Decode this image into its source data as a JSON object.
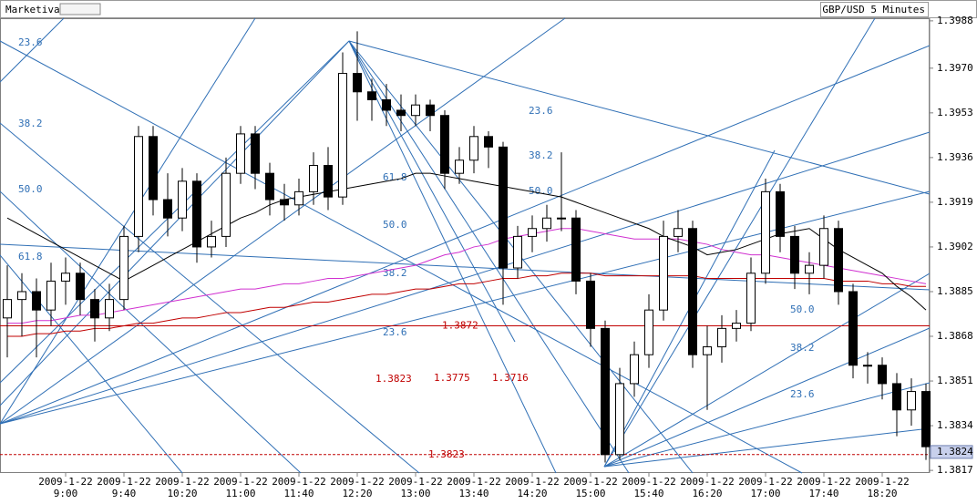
{
  "app": "Marketiva",
  "chart_data": {
    "type": "candlestick",
    "title": "GBP/USD 5 Minutes",
    "x": [
      null,
      null,
      null,
      null,
      "2009-1-22 9:00",
      null,
      null,
      null,
      "2009-1-22 9:40",
      null,
      null,
      null,
      "2009-1-22 10:20",
      null,
      null,
      null,
      "2009-1-22 11:00",
      null,
      null,
      null,
      "2009-1-22 11:40",
      null,
      null,
      null,
      "2009-1-22 12:20",
      null,
      null,
      null,
      "2009-1-22 13:00",
      null,
      null,
      null,
      "2009-1-22 13:40",
      null,
      null,
      null,
      "2009-1-22 14:20",
      null,
      null,
      null,
      "2009-1-22 15:00",
      null,
      null,
      null,
      "2009-1-22 15:40",
      null,
      null,
      null,
      "2009-1-22 16:20",
      null,
      null,
      null,
      "2009-1-22 17:00",
      null,
      null,
      null,
      "2009-1-22 17:40",
      null,
      null,
      null,
      "2009-1-22 18:20",
      null,
      null,
      null
    ],
    "open": [
      1.3875,
      1.3882,
      1.3885,
      1.3878,
      1.3889,
      1.3892,
      1.3882,
      1.3875,
      1.3882,
      1.3906,
      1.3944,
      1.392,
      1.3913,
      1.3927,
      1.3902,
      1.3906,
      1.393,
      1.3945,
      1.393,
      1.392,
      1.3918,
      1.3923,
      1.3933,
      1.3921,
      1.3968,
      1.3961,
      1.3958,
      1.3954,
      1.3952,
      1.3956,
      1.3952,
      1.393,
      1.3935,
      1.3944,
      1.394,
      1.3894,
      1.3906,
      1.3909,
      1.3913,
      1.3913,
      1.3889,
      1.3871,
      1.3823,
      1.385,
      1.3861,
      1.3878,
      1.3906,
      1.3909,
      1.3861,
      1.3864,
      1.3871,
      1.3873,
      1.3892,
      1.3923,
      1.3906,
      1.3892,
      1.3895,
      1.3909,
      1.3885,
      1.3857,
      1.3857,
      1.385,
      1.384,
      1.3847
    ],
    "high": [
      1.3895,
      1.3892,
      1.389,
      1.3896,
      1.3898,
      1.3896,
      1.3886,
      1.3888,
      1.391,
      1.3948,
      1.3948,
      1.393,
      1.3932,
      1.393,
      1.3912,
      1.3936,
      1.3948,
      1.3948,
      1.3934,
      1.3926,
      1.3928,
      1.3938,
      1.394,
      1.3976,
      1.3984,
      1.3966,
      1.3964,
      1.396,
      1.396,
      1.3958,
      1.3954,
      1.394,
      1.3948,
      1.3946,
      1.3942,
      1.391,
      1.3914,
      1.3918,
      1.3938,
      1.3916,
      1.3892,
      1.3874,
      1.3856,
      1.3866,
      1.3884,
      1.3912,
      1.3916,
      1.3912,
      1.3872,
      1.3876,
      1.3878,
      1.3898,
      1.3928,
      1.3926,
      1.391,
      1.39,
      1.3914,
      1.3912,
      1.3888,
      1.3862,
      1.386,
      1.3854,
      1.3852,
      1.385
    ],
    "low": [
      1.386,
      1.3868,
      1.386,
      1.3872,
      1.388,
      1.3876,
      1.3866,
      1.387,
      1.3878,
      1.39,
      1.3914,
      1.3906,
      1.3908,
      1.3896,
      1.3898,
      1.3902,
      1.3926,
      1.3924,
      1.3914,
      1.3912,
      1.3914,
      1.3918,
      1.3916,
      1.3918,
      1.395,
      1.395,
      1.3948,
      1.3946,
      1.3948,
      1.3946,
      1.3924,
      1.3926,
      1.393,
      1.3932,
      1.388,
      1.389,
      1.39,
      1.3904,
      1.3908,
      1.3884,
      1.3864,
      1.382,
      1.3821,
      1.3845,
      1.3856,
      1.3874,
      1.39,
      1.3856,
      1.384,
      1.3858,
      1.3866,
      1.387,
      1.3888,
      1.39,
      1.3886,
      1.3884,
      1.389,
      1.388,
      1.3852,
      1.385,
      1.3844,
      1.383,
      1.3834,
      1.3821
    ],
    "close": [
      1.3882,
      1.3885,
      1.3878,
      1.3889,
      1.3892,
      1.3882,
      1.3875,
      1.3882,
      1.3906,
      1.3944,
      1.392,
      1.3913,
      1.3927,
      1.3902,
      1.3906,
      1.393,
      1.3945,
      1.393,
      1.392,
      1.3918,
      1.3923,
      1.3933,
      1.3921,
      1.3968,
      1.3961,
      1.3958,
      1.3954,
      1.3952,
      1.3956,
      1.3952,
      1.393,
      1.3935,
      1.3944,
      1.394,
      1.3894,
      1.3906,
      1.3909,
      1.3913,
      1.3913,
      1.3889,
      1.3871,
      1.3823,
      1.385,
      1.3861,
      1.3878,
      1.3906,
      1.3909,
      1.3861,
      1.3864,
      1.3871,
      1.3873,
      1.3892,
      1.3923,
      1.3906,
      1.3892,
      1.3895,
      1.3909,
      1.3885,
      1.3857,
      1.3857,
      1.385,
      1.384,
      1.3847,
      1.3826
    ],
    "up_color": "#ffffff",
    "down_color": "#000000",
    "series": [
      {
        "color": "#c00000",
        "values": [
          1.3868,
          1.3868,
          1.3869,
          1.3869,
          1.387,
          1.387,
          1.3871,
          1.3871,
          1.3872,
          1.3873,
          1.3873,
          1.3874,
          1.3875,
          1.3875,
          1.3876,
          1.3877,
          1.3877,
          1.3878,
          1.3879,
          1.3879,
          1.388,
          1.3881,
          1.3881,
          1.3882,
          1.3883,
          1.3884,
          1.3884,
          1.3885,
          1.3886,
          1.3886,
          1.3887,
          1.3888,
          1.3888,
          1.3889,
          1.389,
          1.389,
          1.3891,
          1.3891,
          1.3892,
          1.3892,
          1.3892,
          1.3891,
          1.3891,
          1.3891,
          1.3891,
          1.3891,
          1.3891,
          1.3891,
          1.389,
          1.389,
          1.389,
          1.389,
          1.389,
          1.389,
          1.389,
          1.389,
          1.389,
          1.3889,
          1.3889,
          1.3889,
          1.3888,
          1.3888,
          1.3887,
          1.3887
        ]
      },
      {
        "color": "#d030d0",
        "values": [
          1.3873,
          1.3873,
          1.3874,
          1.3874,
          1.3875,
          1.3876,
          1.3876,
          1.3877,
          1.3878,
          1.3879,
          1.388,
          1.3881,
          1.3882,
          1.3883,
          1.3884,
          1.3885,
          1.3886,
          1.3886,
          1.3887,
          1.3888,
          1.3888,
          1.3889,
          1.389,
          1.389,
          1.3891,
          1.3892,
          1.3893,
          1.3894,
          1.3895,
          1.3897,
          1.3899,
          1.39,
          1.3902,
          1.3903,
          1.3905,
          1.3906,
          1.3907,
          1.3908,
          1.3909,
          1.3909,
          1.3908,
          1.3907,
          1.3906,
          1.3905,
          1.3905,
          1.3905,
          1.3905,
          1.3904,
          1.3903,
          1.3901,
          1.39,
          1.3899,
          1.3899,
          1.3898,
          1.3897,
          1.3896,
          1.3895,
          1.3894,
          1.3893,
          1.3892,
          1.3891,
          1.389,
          1.3889,
          1.3888
        ]
      },
      {
        "color": "#000000",
        "values": [
          1.3913,
          1.391,
          1.3907,
          1.3904,
          1.3901,
          1.3898,
          1.3895,
          1.3892,
          1.3889,
          1.3892,
          1.3895,
          1.3898,
          1.3901,
          1.3904,
          1.3907,
          1.391,
          1.3913,
          1.3915,
          1.3918,
          1.392,
          1.3921,
          1.3922,
          1.3923,
          1.3924,
          1.3925,
          1.3926,
          1.3927,
          1.3928,
          1.393,
          1.393,
          1.3929,
          1.3928,
          1.3927,
          1.3926,
          1.3925,
          1.3924,
          1.3923,
          1.3922,
          1.3921,
          1.3919,
          1.3917,
          1.3915,
          1.3913,
          1.3911,
          1.3909,
          1.3906,
          1.3904,
          1.3902,
          1.3899,
          1.39,
          1.3901,
          1.3903,
          1.3905,
          1.3907,
          1.3908,
          1.3909,
          1.3905,
          1.3901,
          1.3898,
          1.3895,
          1.3892,
          1.3887,
          1.3883,
          1.3878
        ]
      }
    ],
    "ylim": [
      1.3816,
      1.3989
    ],
    "yticks": [
      1.3988,
      {
        "value": 1.397,
        "label": "1.3970"
      },
      1.3953,
      1.3936,
      1.3919,
      1.3902,
      1.3885,
      1.3868,
      1.3851,
      1.3834,
      1.3817
    ],
    "axis_side": "right",
    "levels": [
      {
        "value": 1.3872,
        "color": "#c00000",
        "dashed": false
      },
      {
        "value": 1.3823,
        "color": "#c00000",
        "dashed": true
      }
    ],
    "last_price": 1.3824,
    "projections": [
      "1.3823",
      "1.3775",
      "1.3716"
    ],
    "fib_labels": [
      "23.6",
      "38.2",
      "50.0",
      "61.8",
      "61.8",
      "50.0",
      "38.2",
      "23.6",
      "23.6",
      "38.2",
      "50.0",
      "50.0",
      "38.2",
      "23.6"
    ]
  }
}
